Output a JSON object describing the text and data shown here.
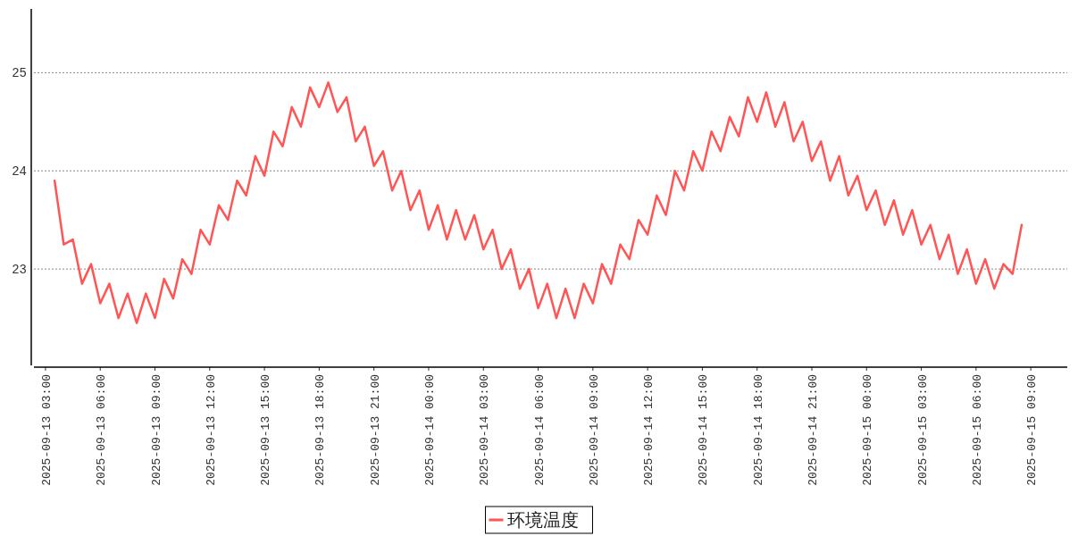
{
  "chart_data": {
    "type": "line",
    "x": [
      "2025-09-13T03:30",
      "2025-09-13T04:00",
      "2025-09-13T04:30",
      "2025-09-13T05:00",
      "2025-09-13T05:30",
      "2025-09-13T06:00",
      "2025-09-13T06:30",
      "2025-09-13T07:00",
      "2025-09-13T07:30",
      "2025-09-13T08:00",
      "2025-09-13T08:30",
      "2025-09-13T09:00",
      "2025-09-13T09:30",
      "2025-09-13T10:00",
      "2025-09-13T10:30",
      "2025-09-13T11:00",
      "2025-09-13T11:30",
      "2025-09-13T12:00",
      "2025-09-13T12:30",
      "2025-09-13T13:00",
      "2025-09-13T13:30",
      "2025-09-13T14:00",
      "2025-09-13T14:30",
      "2025-09-13T15:00",
      "2025-09-13T15:30",
      "2025-09-13T16:00",
      "2025-09-13T16:30",
      "2025-09-13T17:00",
      "2025-09-13T17:30",
      "2025-09-13T18:00",
      "2025-09-13T18:30",
      "2025-09-13T19:00",
      "2025-09-13T19:30",
      "2025-09-13T20:00",
      "2025-09-13T20:30",
      "2025-09-13T21:00",
      "2025-09-13T21:30",
      "2025-09-13T22:00",
      "2025-09-13T22:30",
      "2025-09-13T23:00",
      "2025-09-13T23:30",
      "2025-09-14T00:00",
      "2025-09-14T00:30",
      "2025-09-14T01:00",
      "2025-09-14T01:30",
      "2025-09-14T02:00",
      "2025-09-14T02:30",
      "2025-09-14T03:00",
      "2025-09-14T03:30",
      "2025-09-14T04:00",
      "2025-09-14T04:30",
      "2025-09-14T05:00",
      "2025-09-14T05:30",
      "2025-09-14T06:00",
      "2025-09-14T06:30",
      "2025-09-14T07:00",
      "2025-09-14T07:30",
      "2025-09-14T08:00",
      "2025-09-14T08:30",
      "2025-09-14T09:00",
      "2025-09-14T09:30",
      "2025-09-14T10:00",
      "2025-09-14T10:30",
      "2025-09-14T11:00",
      "2025-09-14T11:30",
      "2025-09-14T12:00",
      "2025-09-14T12:30",
      "2025-09-14T13:00",
      "2025-09-14T13:30",
      "2025-09-14T14:00",
      "2025-09-14T14:30",
      "2025-09-14T15:00",
      "2025-09-14T15:30",
      "2025-09-14T16:00",
      "2025-09-14T16:30",
      "2025-09-14T17:00",
      "2025-09-14T17:30",
      "2025-09-14T18:00",
      "2025-09-14T18:30",
      "2025-09-14T19:00",
      "2025-09-14T19:30",
      "2025-09-14T20:00",
      "2025-09-14T20:30",
      "2025-09-14T21:00",
      "2025-09-14T21:30",
      "2025-09-14T22:00",
      "2025-09-14T22:30",
      "2025-09-14T23:00",
      "2025-09-14T23:30",
      "2025-09-15T00:00",
      "2025-09-15T00:30",
      "2025-09-15T01:00",
      "2025-09-15T01:30",
      "2025-09-15T02:00",
      "2025-09-15T02:30",
      "2025-09-15T03:00",
      "2025-09-15T03:30",
      "2025-09-15T04:00",
      "2025-09-15T04:30",
      "2025-09-15T05:00",
      "2025-09-15T05:30",
      "2025-09-15T06:00",
      "2025-09-15T06:30",
      "2025-09-15T07:00",
      "2025-09-15T07:30",
      "2025-09-15T08:00",
      "2025-09-15T08:30"
    ],
    "series": [
      {
        "name": "环境温度",
        "color": "#ff5555",
        "values": [
          23.9,
          23.25,
          23.3,
          22.85,
          23.05,
          22.65,
          22.85,
          22.5,
          22.75,
          22.45,
          22.75,
          22.5,
          22.9,
          22.7,
          23.1,
          22.95,
          23.4,
          23.25,
          23.65,
          23.5,
          23.9,
          23.75,
          24.15,
          23.95,
          24.4,
          24.25,
          24.65,
          24.45,
          24.85,
          24.65,
          24.9,
          24.6,
          24.75,
          24.3,
          24.45,
          24.05,
          24.2,
          23.8,
          24.0,
          23.6,
          23.8,
          23.4,
          23.65,
          23.3,
          23.6,
          23.3,
          23.55,
          23.2,
          23.4,
          23.0,
          23.2,
          22.8,
          23.0,
          22.6,
          22.85,
          22.5,
          22.8,
          22.5,
          22.85,
          22.65,
          23.05,
          22.85,
          23.25,
          23.1,
          23.5,
          23.35,
          23.75,
          23.55,
          24.0,
          23.8,
          24.2,
          24.0,
          24.4,
          24.2,
          24.55,
          24.35,
          24.75,
          24.5,
          24.8,
          24.45,
          24.7,
          24.3,
          24.5,
          24.1,
          24.3,
          23.9,
          24.15,
          23.75,
          23.95,
          23.6,
          23.8,
          23.45,
          23.7,
          23.35,
          23.6,
          23.25,
          23.45,
          23.1,
          23.35,
          22.95,
          23.2,
          22.85,
          23.1,
          22.8,
          23.05,
          22.95,
          23.45
        ]
      }
    ],
    "xlim": [
      "2025-09-13T02:22",
      "2025-09-15T11:00"
    ],
    "ylim": [
      22,
      25.65
    ],
    "xticks": [
      {
        "value": "2025-09-13T03:00",
        "label": "2025-09-13 03:00"
      },
      {
        "value": "2025-09-13T06:00",
        "label": "2025-09-13 06:00"
      },
      {
        "value": "2025-09-13T09:00",
        "label": "2025-09-13 09:00"
      },
      {
        "value": "2025-09-13T12:00",
        "label": "2025-09-13 12:00"
      },
      {
        "value": "2025-09-13T15:00",
        "label": "2025-09-13 15:00"
      },
      {
        "value": "2025-09-13T18:00",
        "label": "2025-09-13 18:00"
      },
      {
        "value": "2025-09-13T21:00",
        "label": "2025-09-13 21:00"
      },
      {
        "value": "2025-09-14T00:00",
        "label": "2025-09-14 00:00"
      },
      {
        "value": "2025-09-14T03:00",
        "label": "2025-09-14 03:00"
      },
      {
        "value": "2025-09-14T06:00",
        "label": "2025-09-14 06:00"
      },
      {
        "value": "2025-09-14T09:00",
        "label": "2025-09-14 09:00"
      },
      {
        "value": "2025-09-14T12:00",
        "label": "2025-09-14 12:00"
      },
      {
        "value": "2025-09-14T15:00",
        "label": "2025-09-14 15:00"
      },
      {
        "value": "2025-09-14T18:00",
        "label": "2025-09-14 18:00"
      },
      {
        "value": "2025-09-14T21:00",
        "label": "2025-09-14 21:00"
      },
      {
        "value": "2025-09-15T00:00",
        "label": "2025-09-15 00:00"
      },
      {
        "value": "2025-09-15T03:00",
        "label": "2025-09-15 03:00"
      },
      {
        "value": "2025-09-15T06:00",
        "label": "2025-09-15 06:00"
      },
      {
        "value": "2025-09-15T09:00",
        "label": "2025-09-15 09:00"
      }
    ],
    "yticks": [
      23,
      24,
      25
    ],
    "grid": "y",
    "legend": "bottom",
    "line_style": "solid"
  }
}
